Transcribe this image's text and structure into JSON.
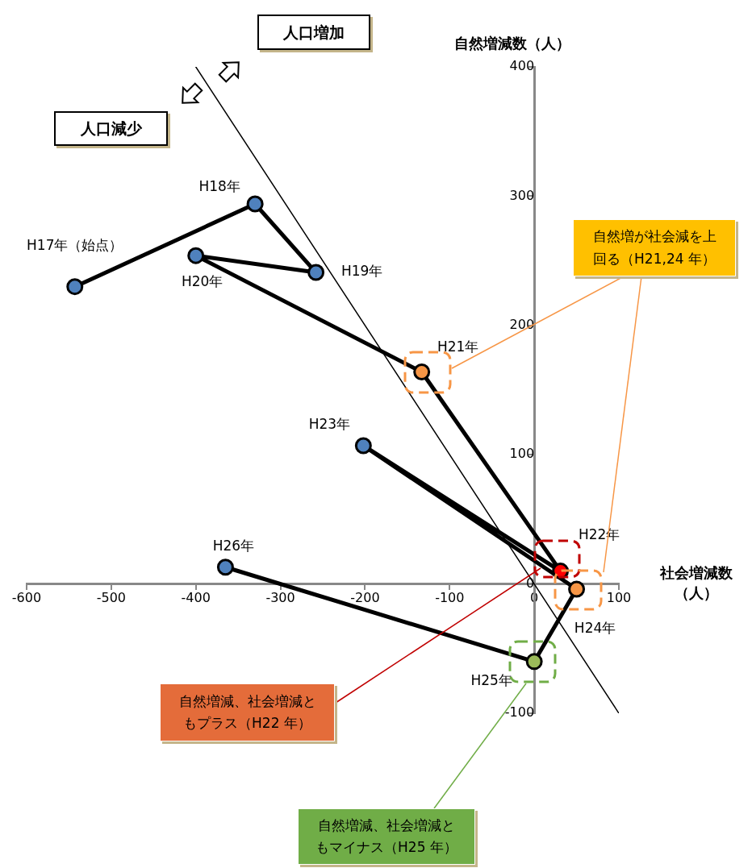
{
  "chart_data": {
    "type": "line",
    "xlabel": "社会増減数（人）",
    "ylabel": "自然増減数（人）",
    "xlim": [
      -600,
      100
    ],
    "xticks": [
      -600,
      -500,
      -400,
      -300,
      -200,
      -100,
      0,
      100
    ],
    "ylim": [
      -100,
      400
    ],
    "yticks": [
      -100,
      0,
      100,
      200,
      300,
      400
    ],
    "grid": false,
    "legend": false,
    "marker": "circle",
    "series": [
      {
        "color": "#000000",
        "colors": [
          "#4f81bd",
          "#4f81bd",
          "#4f81bd",
          "#4f81bd",
          "#f79646",
          "#ff0000",
          "#4f81bd",
          "#f79646",
          "#9bbb59",
          "#4f81bd"
        ],
        "x": [
          -543,
          -330,
          -258,
          -400,
          -133,
          31,
          -202,
          50,
          0,
          -365
        ],
        "values": [
          230,
          294,
          241,
          254,
          164,
          10,
          107,
          -4,
          -60,
          13
        ]
      },
      {
        "color": "#000000",
        "marker": "none",
        "x": [
          -400,
          100
        ],
        "values": [
          400,
          -100
        ]
      }
    ],
    "annotations": [
      {
        "text": "H17年（始点）",
        "x": -543,
        "y": 230
      },
      {
        "text": "H18年",
        "x": -330,
        "y": 294
      },
      {
        "text": "H19年",
        "x": -258,
        "y": 241
      },
      {
        "text": "H20年",
        "x": -400,
        "y": 254
      },
      {
        "text": "H21年",
        "x": -133,
        "y": 164
      },
      {
        "text": "H22年",
        "x": 31,
        "y": 10
      },
      {
        "text": "H23年",
        "x": -202,
        "y": 107
      },
      {
        "text": "H24年",
        "x": 50,
        "y": -4
      },
      {
        "text": "H25年",
        "x": 0,
        "y": -60
      },
      {
        "text": "H26年",
        "x": -365,
        "y": 13
      },
      "人口増加",
      "人口減少",
      "自然増が社会減を上回る（H21,24 年）",
      "自然増減、社会増減ともプラス（H22 年）",
      "自然増減、社会増減ともマイナス（H25 年）"
    ]
  }
}
